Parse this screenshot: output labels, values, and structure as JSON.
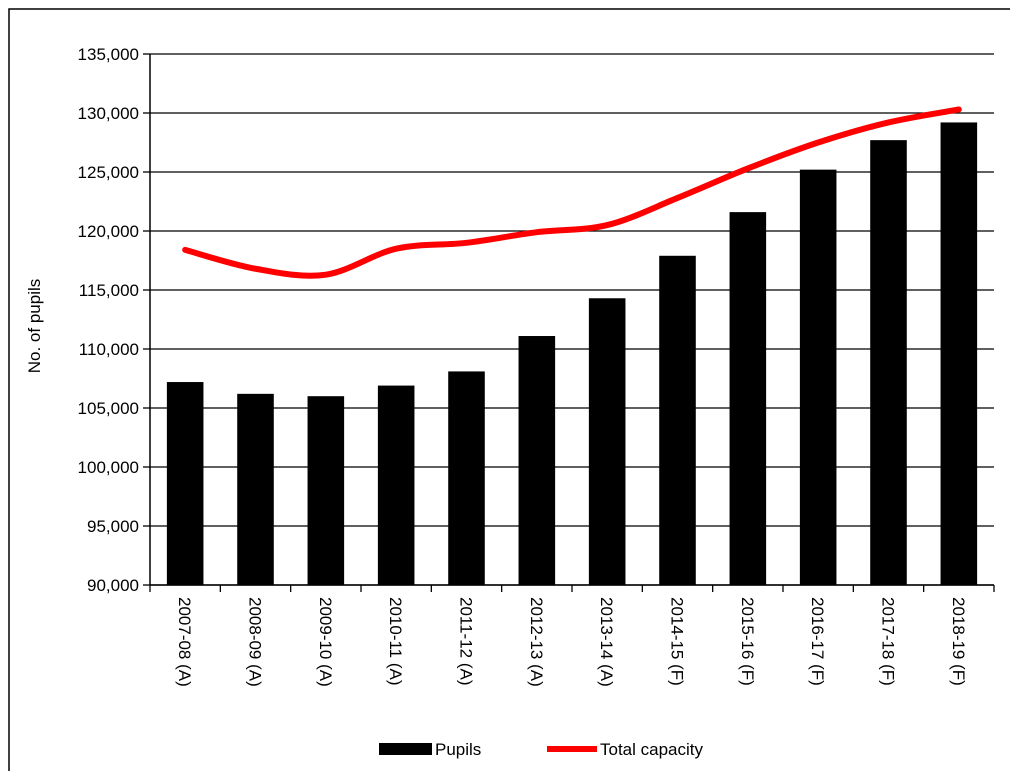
{
  "chart_data": {
    "type": "bar",
    "title": "",
    "xlabel": "",
    "ylabel": "No. of pupils",
    "ylim": [
      90000,
      135000
    ],
    "yticks": [
      90000,
      95000,
      100000,
      105000,
      110000,
      115000,
      120000,
      125000,
      130000,
      135000
    ],
    "ytick_labels": [
      "90,000",
      "95,000",
      "100,000",
      "105,000",
      "110,000",
      "115,000",
      "120,000",
      "125,000",
      "130,000",
      "135,000"
    ],
    "grid": true,
    "legend_position": "bottom",
    "categories": [
      "2007-08 (A)",
      "2008-09 (A)",
      "2009-10 (A)",
      "2010-11 (A)",
      "2011-12 (A)",
      "2012-13 (A)",
      "2013-14 (A)",
      "2014-15 (F)",
      "2015-16 (F)",
      "2016-17 (F)",
      "2017-18 (F)",
      "2018-19 (F)"
    ],
    "series": [
      {
        "name": "Pupils",
        "type": "bar",
        "color": "#000000",
        "values": [
          107200,
          106200,
          106000,
          106900,
          108100,
          111100,
          114300,
          117900,
          121600,
          125200,
          127700,
          129200
        ]
      },
      {
        "name": "Total capacity",
        "type": "line",
        "color": "#ff0000",
        "values": [
          118400,
          116800,
          116300,
          118500,
          119000,
          119900,
          120500,
          122800,
          125300,
          127500,
          129200,
          130300
        ]
      }
    ]
  }
}
